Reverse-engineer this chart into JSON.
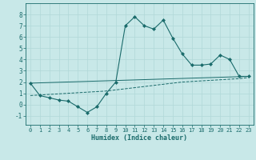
{
  "xlabel": "Humidex (Indice chaleur)",
  "xlim": [
    -0.5,
    23.5
  ],
  "ylim": [
    -1.8,
    9.0
  ],
  "xticks": [
    0,
    1,
    2,
    3,
    4,
    5,
    6,
    7,
    8,
    9,
    10,
    11,
    12,
    13,
    14,
    15,
    16,
    17,
    18,
    19,
    20,
    21,
    22,
    23
  ],
  "yticks": [
    -1,
    0,
    1,
    2,
    3,
    4,
    5,
    6,
    7,
    8
  ],
  "bg_color": "#c8e8e8",
  "line_color": "#1a6b6b",
  "grid_color": "#e0f0f0",
  "series1_x": [
    0,
    1,
    2,
    3,
    4,
    5,
    6,
    7,
    8,
    9,
    10,
    11,
    12,
    13,
    14,
    15,
    16,
    17,
    18,
    19,
    20,
    21,
    22,
    23
  ],
  "series1_y": [
    1.9,
    0.8,
    0.6,
    0.4,
    0.3,
    -0.2,
    -0.7,
    -0.2,
    1.0,
    2.0,
    7.0,
    7.8,
    7.0,
    6.7,
    7.5,
    5.9,
    4.5,
    3.5,
    3.5,
    3.6,
    4.4,
    4.0,
    2.5,
    2.5
  ],
  "series2_x": [
    0,
    1,
    2,
    3,
    4,
    5,
    6,
    7,
    8,
    9,
    10,
    11,
    12,
    13,
    14,
    15,
    16,
    17,
    18,
    19,
    20,
    21,
    22,
    23
  ],
  "series2_y": [
    0.8,
    0.85,
    0.9,
    0.95,
    1.0,
    1.05,
    1.1,
    1.15,
    1.2,
    1.3,
    1.4,
    1.5,
    1.6,
    1.7,
    1.8,
    1.9,
    2.0,
    2.05,
    2.1,
    2.15,
    2.2,
    2.25,
    2.3,
    2.4
  ],
  "series3_x": [
    0,
    23
  ],
  "series3_y": [
    1.9,
    2.5
  ]
}
